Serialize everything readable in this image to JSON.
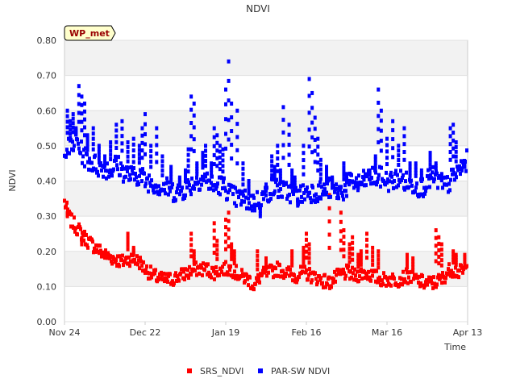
{
  "chart_data": {
    "type": "scatter",
    "title": "NDVI",
    "xlabel": "Time",
    "ylabel": "NDVI",
    "station_badge": "WP_met",
    "ylim": [
      0,
      0.8
    ],
    "xlim_days": [
      0,
      140
    ],
    "yticks": [
      "0.00",
      "0.10",
      "0.20",
      "0.30",
      "0.40",
      "0.50",
      "0.60",
      "0.70",
      "0.80"
    ],
    "xticks": [
      {
        "label": "Nov 24",
        "day": 0
      },
      {
        "label": "Dec 22",
        "day": 28
      },
      {
        "label": "Jan 19",
        "day": 56
      },
      {
        "label": "Feb 16",
        "day": 84
      },
      {
        "label": "Mar 16",
        "day": 112
      },
      {
        "label": "Apr 13",
        "day": 140
      }
    ],
    "colors": {
      "SRS_NDVI": "#ff0000",
      "PAR-SW NDVI": "#0000ff",
      "band": "#f2f2f2",
      "badge": "#ffffcc"
    },
    "legend": {
      "position": "bottom-center",
      "entries": [
        "SRS_NDVI",
        "PAR-SW NDVI"
      ]
    },
    "series": [
      {
        "name": "SRS_NDVI",
        "baseline": [
          [
            0,
            0.34
          ],
          [
            2,
            0.29
          ],
          [
            5,
            0.26
          ],
          [
            8,
            0.23
          ],
          [
            11,
            0.21
          ],
          [
            14,
            0.19
          ],
          [
            17,
            0.18
          ],
          [
            20,
            0.17
          ],
          [
            23,
            0.18
          ],
          [
            26,
            0.17
          ],
          [
            28,
            0.15
          ],
          [
            31,
            0.13
          ],
          [
            34,
            0.12
          ],
          [
            37,
            0.12
          ],
          [
            40,
            0.13
          ],
          [
            43,
            0.14
          ],
          [
            46,
            0.15
          ],
          [
            49,
            0.15
          ],
          [
            52,
            0.14
          ],
          [
            55,
            0.15
          ],
          [
            58,
            0.15
          ],
          [
            61,
            0.13
          ],
          [
            64,
            0.12
          ],
          [
            66,
            0.1
          ],
          [
            68,
            0.13
          ],
          [
            71,
            0.14
          ],
          [
            74,
            0.15
          ],
          [
            77,
            0.14
          ],
          [
            80,
            0.13
          ],
          [
            83,
            0.14
          ],
          [
            86,
            0.13
          ],
          [
            89,
            0.12
          ],
          [
            92,
            0.11
          ],
          [
            95,
            0.13
          ],
          [
            98,
            0.14
          ],
          [
            101,
            0.13
          ],
          [
            104,
            0.14
          ],
          [
            107,
            0.13
          ],
          [
            110,
            0.12
          ],
          [
            113,
            0.12
          ],
          [
            116,
            0.12
          ],
          [
            119,
            0.13
          ],
          [
            122,
            0.12
          ],
          [
            125,
            0.11
          ],
          [
            128,
            0.11
          ],
          [
            131,
            0.12
          ],
          [
            134,
            0.15
          ],
          [
            137,
            0.14
          ],
          [
            140,
            0.15
          ]
        ],
        "spread": 0.02,
        "outliers": [
          [
            1,
            0.3
          ],
          [
            6,
            0.22
          ],
          [
            22,
            0.25
          ],
          [
            24,
            0.21
          ],
          [
            44,
            0.25
          ],
          [
            45,
            0.2
          ],
          [
            52,
            0.28
          ],
          [
            53,
            0.23
          ],
          [
            56,
            0.29
          ],
          [
            57,
            0.31
          ],
          [
            58,
            0.22
          ],
          [
            59,
            0.2
          ],
          [
            67,
            0.2
          ],
          [
            70,
            0.18
          ],
          [
            79,
            0.2
          ],
          [
            83,
            0.21
          ],
          [
            84,
            0.25
          ],
          [
            85,
            0.22
          ],
          [
            92,
            0.36
          ],
          [
            96,
            0.31
          ],
          [
            97,
            0.26
          ],
          [
            99,
            0.22
          ],
          [
            100,
            0.24
          ],
          [
            102,
            0.19
          ],
          [
            103,
            0.2
          ],
          [
            105,
            0.25
          ],
          [
            107,
            0.21
          ],
          [
            109,
            0.2
          ],
          [
            119,
            0.19
          ],
          [
            121,
            0.18
          ],
          [
            129,
            0.26
          ],
          [
            130,
            0.24
          ],
          [
            131,
            0.22
          ],
          [
            135,
            0.2
          ],
          [
            136,
            0.19
          ],
          [
            139,
            0.19
          ]
        ]
      },
      {
        "name": "PAR-SW NDVI",
        "baseline": [
          [
            0,
            0.5
          ],
          [
            2,
            0.49
          ],
          [
            4,
            0.52
          ],
          [
            6,
            0.48
          ],
          [
            8,
            0.46
          ],
          [
            10,
            0.45
          ],
          [
            12,
            0.44
          ],
          [
            14,
            0.44
          ],
          [
            16,
            0.43
          ],
          [
            18,
            0.45
          ],
          [
            20,
            0.43
          ],
          [
            22,
            0.42
          ],
          [
            24,
            0.41
          ],
          [
            26,
            0.42
          ],
          [
            28,
            0.4
          ],
          [
            30,
            0.4
          ],
          [
            32,
            0.39
          ],
          [
            34,
            0.38
          ],
          [
            36,
            0.38
          ],
          [
            38,
            0.37
          ],
          [
            40,
            0.37
          ],
          [
            42,
            0.38
          ],
          [
            44,
            0.39
          ],
          [
            46,
            0.4
          ],
          [
            48,
            0.41
          ],
          [
            50,
            0.4
          ],
          [
            52,
            0.38
          ],
          [
            54,
            0.39
          ],
          [
            56,
            0.38
          ],
          [
            58,
            0.36
          ],
          [
            60,
            0.35
          ],
          [
            62,
            0.35
          ],
          [
            64,
            0.34
          ],
          [
            66,
            0.34
          ],
          [
            68,
            0.35
          ],
          [
            70,
            0.36
          ],
          [
            72,
            0.38
          ],
          [
            74,
            0.38
          ],
          [
            76,
            0.37
          ],
          [
            78,
            0.37
          ],
          [
            80,
            0.36
          ],
          [
            82,
            0.36
          ],
          [
            84,
            0.37
          ],
          [
            86,
            0.37
          ],
          [
            88,
            0.37
          ],
          [
            90,
            0.37
          ],
          [
            92,
            0.38
          ],
          [
            94,
            0.37
          ],
          [
            96,
            0.37
          ],
          [
            98,
            0.38
          ],
          [
            100,
            0.4
          ],
          [
            102,
            0.39
          ],
          [
            104,
            0.4
          ],
          [
            106,
            0.41
          ],
          [
            108,
            0.41
          ],
          [
            110,
            0.41
          ],
          [
            112,
            0.4
          ],
          [
            114,
            0.4
          ],
          [
            116,
            0.41
          ],
          [
            118,
            0.4
          ],
          [
            120,
            0.39
          ],
          [
            122,
            0.39
          ],
          [
            124,
            0.38
          ],
          [
            126,
            0.4
          ],
          [
            128,
            0.41
          ],
          [
            130,
            0.4
          ],
          [
            132,
            0.38
          ],
          [
            134,
            0.4
          ],
          [
            136,
            0.42
          ],
          [
            138,
            0.44
          ],
          [
            140,
            0.46
          ]
        ],
        "spread": 0.03,
        "outliers": [
          [
            1,
            0.6
          ],
          [
            2,
            0.57
          ],
          [
            3,
            0.59
          ],
          [
            4,
            0.55
          ],
          [
            5,
            0.67
          ],
          [
            6,
            0.64
          ],
          [
            7,
            0.62
          ],
          [
            8,
            0.53
          ],
          [
            10,
            0.55
          ],
          [
            12,
            0.5
          ],
          [
            14,
            0.47
          ],
          [
            16,
            0.51
          ],
          [
            18,
            0.56
          ],
          [
            20,
            0.57
          ],
          [
            22,
            0.51
          ],
          [
            24,
            0.52
          ],
          [
            26,
            0.5
          ],
          [
            27,
            0.55
          ],
          [
            28,
            0.59
          ],
          [
            30,
            0.5
          ],
          [
            32,
            0.55
          ],
          [
            34,
            0.47
          ],
          [
            37,
            0.44
          ],
          [
            40,
            0.41
          ],
          [
            42,
            0.43
          ],
          [
            43,
            0.49
          ],
          [
            44,
            0.64
          ],
          [
            45,
            0.62
          ],
          [
            46,
            0.45
          ],
          [
            48,
            0.48
          ],
          [
            49,
            0.5
          ],
          [
            51,
            0.45
          ],
          [
            52,
            0.55
          ],
          [
            53,
            0.53
          ],
          [
            54,
            0.5
          ],
          [
            55,
            0.49
          ],
          [
            56,
            0.66
          ],
          [
            57,
            0.74
          ],
          [
            58,
            0.62
          ],
          [
            60,
            0.6
          ],
          [
            62,
            0.45
          ],
          [
            64,
            0.4
          ],
          [
            66,
            0.32
          ],
          [
            68,
            0.3
          ],
          [
            70,
            0.39
          ],
          [
            72,
            0.47
          ],
          [
            73,
            0.44
          ],
          [
            74,
            0.5
          ],
          [
            75,
            0.43
          ],
          [
            76,
            0.61
          ],
          [
            78,
            0.56
          ],
          [
            79,
            0.43
          ],
          [
            80,
            0.41
          ],
          [
            81,
            0.33
          ],
          [
            83,
            0.5
          ],
          [
            85,
            0.69
          ],
          [
            86,
            0.65
          ],
          [
            87,
            0.58
          ],
          [
            88,
            0.52
          ],
          [
            89,
            0.46
          ],
          [
            91,
            0.44
          ],
          [
            93,
            0.41
          ],
          [
            95,
            0.36
          ],
          [
            97,
            0.45
          ],
          [
            98,
            0.42
          ],
          [
            99,
            0.4
          ],
          [
            102,
            0.38
          ],
          [
            104,
            0.41
          ],
          [
            106,
            0.43
          ],
          [
            108,
            0.47
          ],
          [
            109,
            0.66
          ],
          [
            110,
            0.6
          ],
          [
            112,
            0.52
          ],
          [
            114,
            0.57
          ],
          [
            116,
            0.5
          ],
          [
            118,
            0.55
          ],
          [
            120,
            0.45
          ],
          [
            122,
            0.45
          ],
          [
            124,
            0.43
          ],
          [
            127,
            0.48
          ],
          [
            129,
            0.45
          ],
          [
            131,
            0.42
          ],
          [
            134,
            0.55
          ],
          [
            135,
            0.56
          ],
          [
            136,
            0.51
          ],
          [
            138,
            0.43
          ],
          [
            139,
            0.44
          ]
        ]
      }
    ]
  }
}
